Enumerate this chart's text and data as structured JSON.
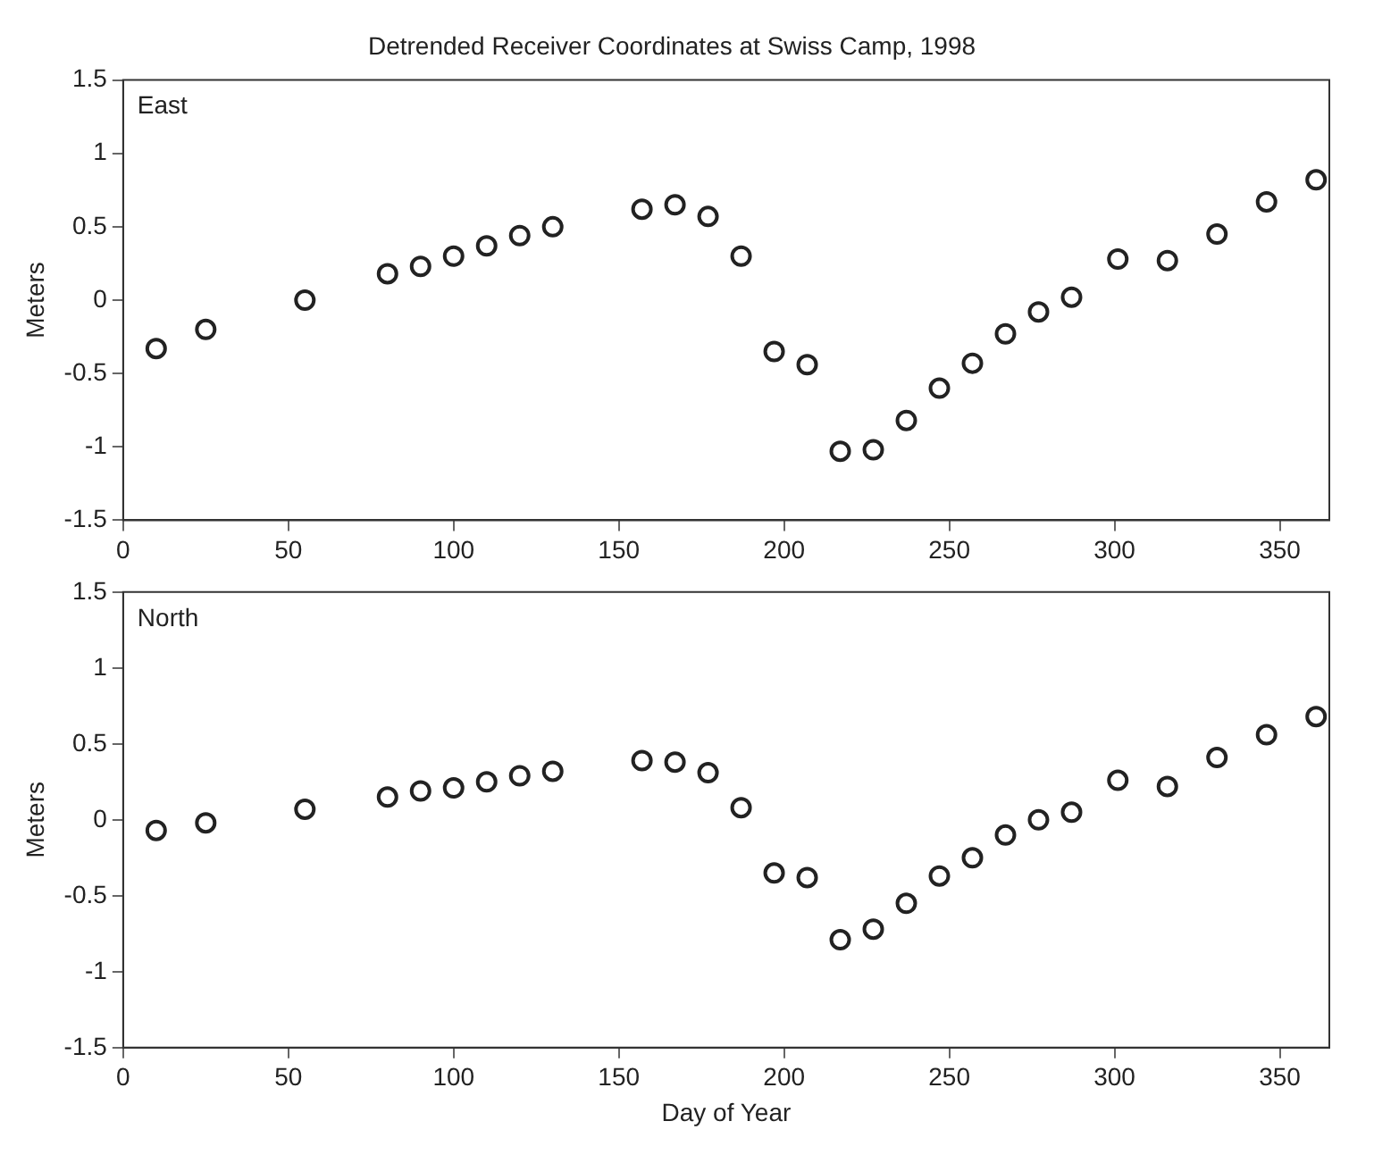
{
  "chart_data": [
    {
      "type": "scatter",
      "title": "Detrended Receiver Coordinates at Swiss Camp, 1998",
      "ylabel": "Meters",
      "annotations": [
        "East"
      ],
      "x": [
        10,
        25,
        55,
        80,
        90,
        100,
        110,
        120,
        130,
        157,
        167,
        177,
        187,
        197,
        207,
        217,
        227,
        237,
        247,
        257,
        267,
        277,
        287,
        301,
        316,
        331,
        346,
        361
      ],
      "series": [
        {
          "color": "#222222",
          "values": [
            -0.33,
            -0.2,
            0,
            0.18,
            0.23,
            0.3,
            0.37,
            0.44,
            0.5,
            0.62,
            0.65,
            0.57,
            0.3,
            -0.35,
            -0.44,
            -1.03,
            -1.02,
            -0.82,
            -0.6,
            -0.43,
            -0.23,
            -0.08,
            0.02,
            0.28,
            0.27,
            0.45,
            0.67,
            0.82
          ]
        }
      ],
      "xlim": [
        0,
        365
      ],
      "xticks": [
        0,
        50,
        100,
        150,
        200,
        250,
        300,
        350
      ],
      "ylim": [
        -1.5,
        1.5
      ],
      "yticks": [
        -1.5,
        -1,
        -0.5,
        0,
        0.5,
        1,
        1.5
      ],
      "marker": "circle",
      "grid": false,
      "legend": false
    },
    {
      "type": "scatter",
      "xlabel": "Day of Year",
      "ylabel": "Meters",
      "annotations": [
        "North"
      ],
      "x": [
        10,
        25,
        55,
        80,
        90,
        100,
        110,
        120,
        130,
        157,
        167,
        177,
        187,
        197,
        207,
        217,
        227,
        237,
        247,
        257,
        267,
        277,
        287,
        301,
        316,
        331,
        346,
        361
      ],
      "series": [
        {
          "color": "#222222",
          "values": [
            -0.07,
            -0.02,
            0.07,
            0.15,
            0.19,
            0.21,
            0.25,
            0.29,
            0.32,
            0.39,
            0.38,
            0.31,
            0.08,
            -0.35,
            -0.38,
            -0.79,
            -0.72,
            -0.55,
            -0.37,
            -0.25,
            -0.1,
            0,
            0.05,
            0.26,
            0.22,
            0.41,
            0.56,
            0.68
          ]
        }
      ],
      "xlim": [
        0,
        365
      ],
      "xticks": [
        0,
        50,
        100,
        150,
        200,
        250,
        300,
        350
      ],
      "ylim": [
        -1.5,
        1.5
      ],
      "yticks": [
        -1.5,
        -1,
        -0.5,
        0,
        0.5,
        1,
        1.5
      ],
      "marker": "circle",
      "grid": false,
      "legend": false
    }
  ]
}
